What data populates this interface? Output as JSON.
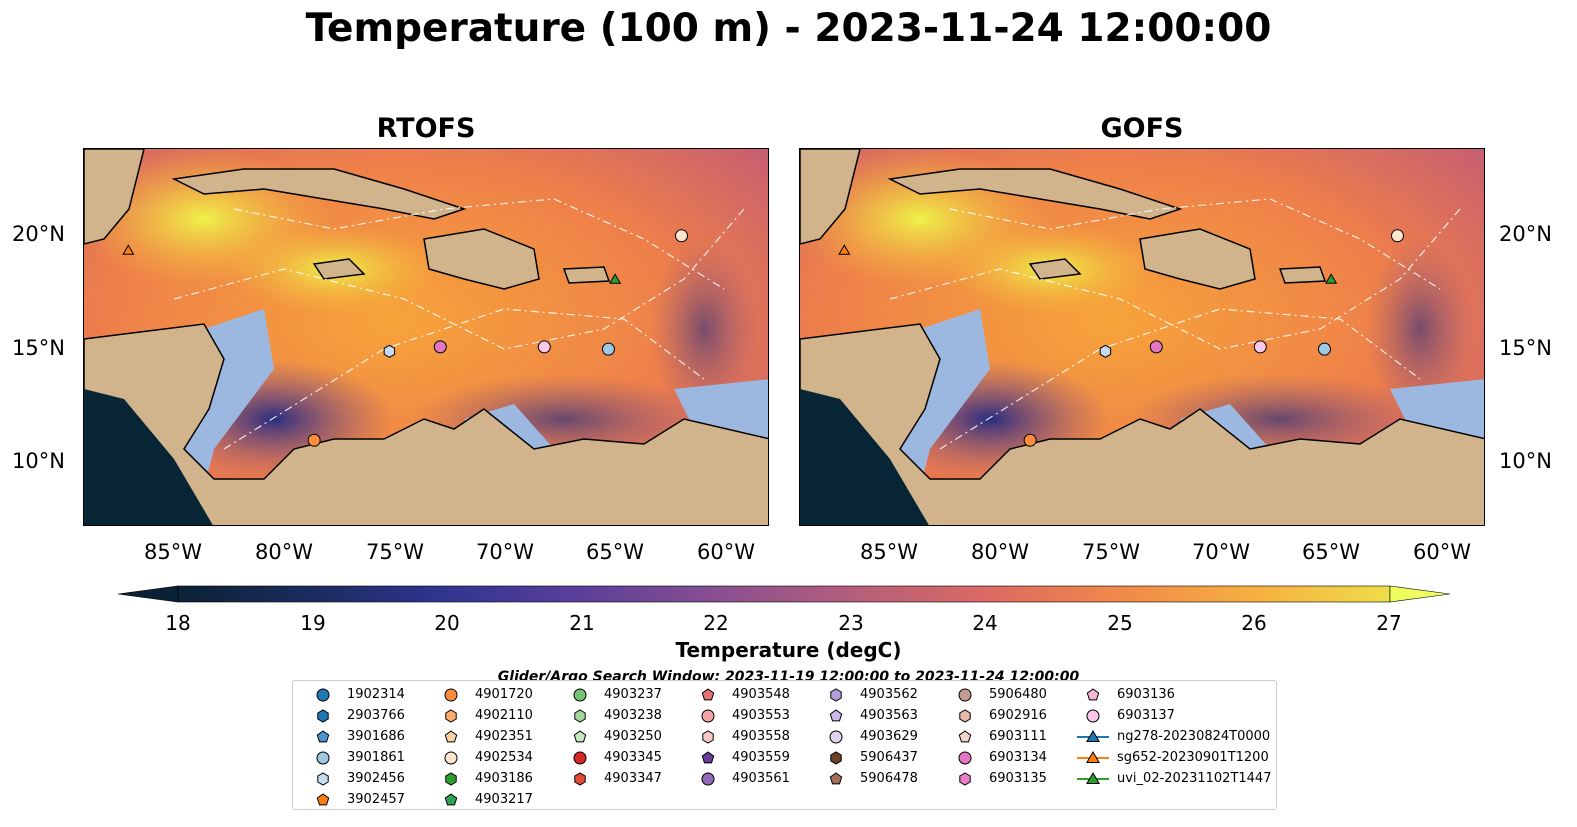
{
  "title": "Temperature (100 m) - 2023-11-24 12:00:00",
  "panels": [
    {
      "title": "RTOFS"
    },
    {
      "title": "GOFS"
    }
  ],
  "lat_ticks": [
    "20°N",
    "15°N",
    "10°N"
  ],
  "lon_ticks": [
    "85°W",
    "80°W",
    "75°W",
    "70°W",
    "65°W",
    "60°W"
  ],
  "colorbar": {
    "label": "Temperature (degC)",
    "ticks": [
      "18",
      "19",
      "20",
      "21",
      "22",
      "23",
      "24",
      "25",
      "26",
      "27"
    ]
  },
  "search_window": "Glider/Argo Search Window: 2023-11-19 12:00:00 to 2023-11-24 12:00:00",
  "legend": [
    {
      "label": "1902314",
      "shape": "circle",
      "color": "#1f77b4"
    },
    {
      "label": "2903766",
      "shape": "hexagon",
      "color": "#1f77b4"
    },
    {
      "label": "3901686",
      "shape": "pentagon",
      "color": "#4b96d1"
    },
    {
      "label": "3901861",
      "shape": "circle",
      "color": "#9ecae1"
    },
    {
      "label": "3902456",
      "shape": "hexagon",
      "color": "#c6dbef"
    },
    {
      "label": "3902457",
      "shape": "pentagon",
      "color": "#ff7f0e"
    },
    {
      "label": "4901720",
      "shape": "circle",
      "color": "#fd8d3c"
    },
    {
      "label": "4902110",
      "shape": "hexagon",
      "color": "#fdae6b"
    },
    {
      "label": "4902351",
      "shape": "pentagon",
      "color": "#fdd0a2"
    },
    {
      "label": "4902534",
      "shape": "circle",
      "color": "#fee6ce"
    },
    {
      "label": "4903186",
      "shape": "hexagon",
      "color": "#2ca02c"
    },
    {
      "label": "4903217",
      "shape": "pentagon",
      "color": "#31a354"
    },
    {
      "label": "4903237",
      "shape": "circle",
      "color": "#74c476"
    },
    {
      "label": "4903238",
      "shape": "hexagon",
      "color": "#a1d99b"
    },
    {
      "label": "4903250",
      "shape": "pentagon",
      "color": "#c7e9c0"
    },
    {
      "label": "4903345",
      "shape": "circle",
      "color": "#d62728"
    },
    {
      "label": "4903347",
      "shape": "hexagon",
      "color": "#e34a33"
    },
    {
      "label": "4903548",
      "shape": "pentagon",
      "color": "#e57373"
    },
    {
      "label": "4903553",
      "shape": "circle",
      "color": "#f4a6a6"
    },
    {
      "label": "4903558",
      "shape": "hexagon",
      "color": "#f9c9c9"
    },
    {
      "label": "4903559",
      "shape": "pentagon",
      "color": "#6a3d9a"
    },
    {
      "label": "4903561",
      "shape": "circle",
      "color": "#9467bd"
    },
    {
      "label": "4903562",
      "shape": "hexagon",
      "color": "#b39ddb"
    },
    {
      "label": "4903563",
      "shape": "pentagon",
      "color": "#cbb8e8"
    },
    {
      "label": "4903629",
      "shape": "circle",
      "color": "#e1d2f2"
    },
    {
      "label": "5906437",
      "shape": "hexagon",
      "color": "#6b4226"
    },
    {
      "label": "5906478",
      "shape": "pentagon",
      "color": "#a0705a"
    },
    {
      "label": "5906480",
      "shape": "circle",
      "color": "#c49c94"
    },
    {
      "label": "6902916",
      "shape": "hexagon",
      "color": "#e6b8a8"
    },
    {
      "label": "6903111",
      "shape": "pentagon",
      "color": "#f5d5c8"
    },
    {
      "label": "6903134",
      "shape": "circle",
      "color": "#e377c2"
    },
    {
      "label": "6903135",
      "shape": "hexagon",
      "color": "#e87fc9"
    },
    {
      "label": "6903136",
      "shape": "pentagon",
      "color": "#f7b6d2"
    },
    {
      "label": "6903137",
      "shape": "circle",
      "color": "#fbc7e6"
    },
    {
      "label": "ng278-20230824T0000",
      "shape": "triangle",
      "color": "#1f77b4"
    },
    {
      "label": "sg652-20230901T1200",
      "shape": "triangle",
      "color": "#ff7f0e"
    },
    {
      "label": "uvi_02-20231102T1447",
      "shape": "triangle",
      "color": "#2ca02c"
    }
  ],
  "chart_data": [
    {
      "type": "heatmap",
      "title": "RTOFS",
      "xlabel": "",
      "ylabel": "",
      "xlim": [
        -89,
        -58
      ],
      "ylim": [
        7,
        24
      ],
      "value_range": [
        18,
        27
      ],
      "map_projection": "lat-lon",
      "markers": [
        {
          "id": "3902456",
          "lon": -75.2,
          "lat": 14.9
        },
        {
          "id": "3901861",
          "lon": -65.3,
          "lat": 15.0
        },
        {
          "id": "6903134",
          "lon": -72.9,
          "lat": 15.1
        },
        {
          "id": "6903137",
          "lon": -68.2,
          "lat": 15.1
        },
        {
          "id": "4902534",
          "lon": -62.0,
          "lat": 20.1
        },
        {
          "id": "4901720",
          "lon": -78.6,
          "lat": 10.9
        },
        {
          "id": "sg652-20230901T1200",
          "lon": -87.0,
          "lat": 19.4
        },
        {
          "id": "uvi_02-20231102T1447",
          "lon": -65.0,
          "lat": 18.1
        }
      ]
    },
    {
      "type": "heatmap",
      "title": "GOFS",
      "xlabel": "",
      "ylabel": "",
      "xlim": [
        -89,
        -58
      ],
      "ylim": [
        7,
        24
      ],
      "value_range": [
        18,
        27
      ],
      "map_projection": "lat-lon",
      "markers": [
        {
          "id": "3902456",
          "lon": -75.2,
          "lat": 14.9
        },
        {
          "id": "3901861",
          "lon": -65.3,
          "lat": 15.0
        },
        {
          "id": "6903134",
          "lon": -72.9,
          "lat": 15.1
        },
        {
          "id": "6903137",
          "lon": -68.2,
          "lat": 15.1
        },
        {
          "id": "4902534",
          "lon": -62.0,
          "lat": 20.1
        },
        {
          "id": "4901720",
          "lon": -78.6,
          "lat": 10.9
        },
        {
          "id": "sg652-20230901T1200",
          "lon": -87.0,
          "lat": 19.4
        },
        {
          "id": "uvi_02-20231102T1447",
          "lon": -65.0,
          "lat": 18.1
        }
      ]
    }
  ]
}
